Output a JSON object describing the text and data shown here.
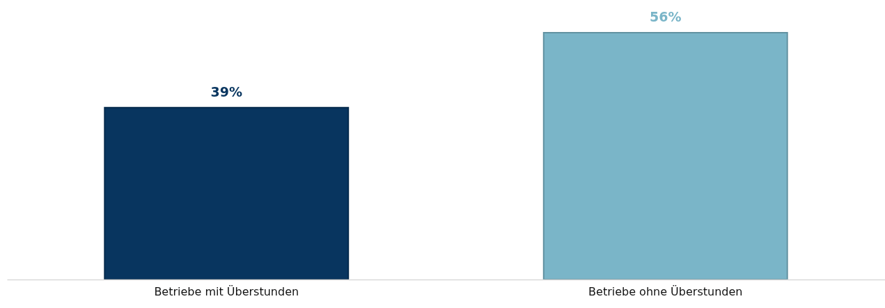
{
  "chart_data": {
    "type": "bar",
    "categories": [
      "Betriebe mit Überstunden",
      "Betriebe ohne Überstunden"
    ],
    "values": [
      39,
      56
    ],
    "colors": [
      "#08355f",
      "#7ab5c8"
    ],
    "data_labels": true,
    "value_labels": [
      "39%",
      "56%"
    ]
  }
}
